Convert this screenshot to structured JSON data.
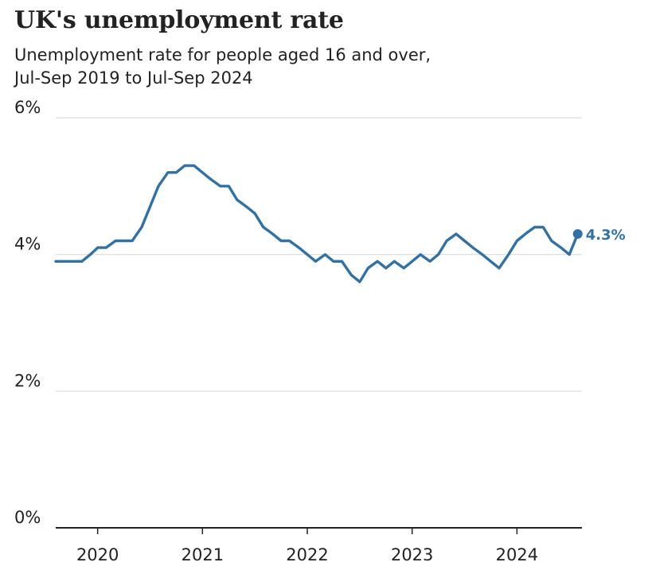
{
  "chart_data": {
    "type": "line",
    "title": "UK's unemployment rate",
    "subtitle_lines": [
      "Unemployment rate for people aged 16 and over,",
      "Jul-Sep 2019 to Jul-Sep 2024"
    ],
    "xlabel": "",
    "ylabel": "",
    "x_range": [
      2019.6,
      2024.62
    ],
    "ylim": [
      0,
      6
    ],
    "y_ticks": [
      {
        "value": 0,
        "label": "0%"
      },
      {
        "value": 2,
        "label": "2%"
      },
      {
        "value": 4,
        "label": "4%"
      },
      {
        "value": 6,
        "label": "6%"
      }
    ],
    "x_ticks": [
      {
        "value": 2020,
        "label": "2020"
      },
      {
        "value": 2021,
        "label": "2021"
      },
      {
        "value": 2022,
        "label": "2022"
      },
      {
        "value": 2023,
        "label": "2023"
      },
      {
        "value": 2024,
        "label": "2024"
      }
    ],
    "grid": true,
    "line_color": "#3071a8",
    "grid_color": "#dcdcdc",
    "axis_color": "#222222",
    "end_label": "4.3%",
    "series": [
      {
        "points": [
          [
            2019.6,
            3.9
          ],
          [
            2019.7,
            3.9
          ],
          [
            2019.8,
            3.9
          ],
          [
            2019.85,
            3.9
          ],
          [
            2019.93,
            4.0
          ],
          [
            2020.0,
            4.1
          ],
          [
            2020.08,
            4.1
          ],
          [
            2020.17,
            4.2
          ],
          [
            2020.25,
            4.2
          ],
          [
            2020.33,
            4.2
          ],
          [
            2020.42,
            4.4
          ],
          [
            2020.5,
            4.7
          ],
          [
            2020.58,
            5.0
          ],
          [
            2020.67,
            5.2
          ],
          [
            2020.75,
            5.2
          ],
          [
            2020.83,
            5.3
          ],
          [
            2020.92,
            5.3
          ],
          [
            2021.0,
            5.2
          ],
          [
            2021.08,
            5.1
          ],
          [
            2021.17,
            5.0
          ],
          [
            2021.25,
            5.0
          ],
          [
            2021.33,
            4.8
          ],
          [
            2021.42,
            4.7
          ],
          [
            2021.5,
            4.6
          ],
          [
            2021.58,
            4.4
          ],
          [
            2021.67,
            4.3
          ],
          [
            2021.75,
            4.2
          ],
          [
            2021.83,
            4.2
          ],
          [
            2021.92,
            4.1
          ],
          [
            2022.0,
            4.0
          ],
          [
            2022.08,
            3.9
          ],
          [
            2022.17,
            4.0
          ],
          [
            2022.25,
            3.9
          ],
          [
            2022.33,
            3.9
          ],
          [
            2022.42,
            3.7
          ],
          [
            2022.5,
            3.6
          ],
          [
            2022.58,
            3.8
          ],
          [
            2022.67,
            3.9
          ],
          [
            2022.75,
            3.8
          ],
          [
            2022.83,
            3.9
          ],
          [
            2022.92,
            3.8
          ],
          [
            2023.0,
            3.9
          ],
          [
            2023.08,
            4.0
          ],
          [
            2023.17,
            3.9
          ],
          [
            2023.25,
            4.0
          ],
          [
            2023.33,
            4.2
          ],
          [
            2023.42,
            4.3
          ],
          [
            2023.5,
            4.2
          ],
          [
            2023.58,
            4.1
          ],
          [
            2023.67,
            4.0
          ],
          [
            2023.75,
            3.9
          ],
          [
            2023.83,
            3.8
          ],
          [
            2023.92,
            4.0
          ],
          [
            2024.0,
            4.2
          ],
          [
            2024.08,
            4.3
          ],
          [
            2024.17,
            4.4
          ],
          [
            2024.25,
            4.4
          ],
          [
            2024.33,
            4.2
          ],
          [
            2024.42,
            4.1
          ],
          [
            2024.5,
            4.0
          ],
          [
            2024.58,
            4.3
          ]
        ]
      }
    ]
  }
}
